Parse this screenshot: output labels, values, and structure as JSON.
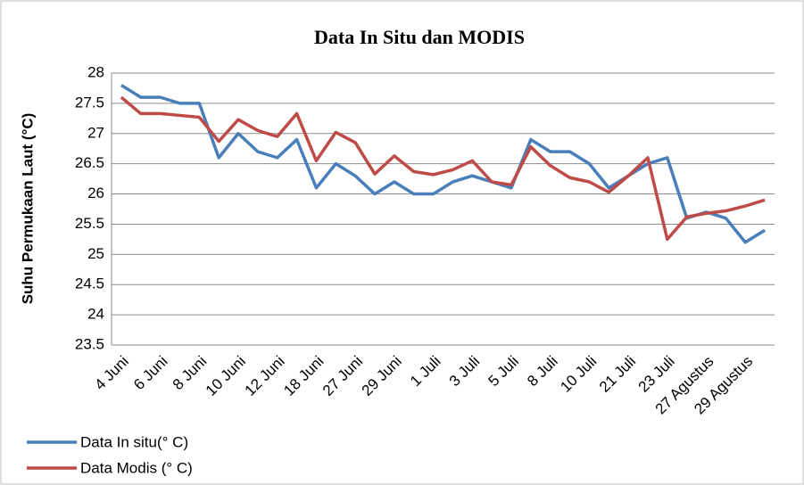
{
  "chart_data": {
    "type": "line",
    "title": "Data In Situ dan MODIS",
    "y_label": "Suhu Permukaan Laut (°C)",
    "categories": [
      "4 Juni",
      null,
      "6 Juni",
      null,
      "8 Juni",
      null,
      "10 Juni",
      null,
      "12 Juni",
      null,
      "18 Juni",
      null,
      "27 Juni",
      null,
      "29 Juni",
      null,
      "1 Juli",
      null,
      "3 Juli",
      null,
      "5 Juli",
      null,
      "8 Juli",
      null,
      "10 Juli",
      null,
      "21 Juli",
      null,
      "23 Juli",
      null,
      "27 Agustus",
      null,
      "29 Agustus",
      null
    ],
    "series": [
      {
        "name": "Data In situ(° C)",
        "color": "#4a7ebb",
        "values": [
          27.8,
          27.6,
          27.6,
          27.5,
          27.5,
          26.6,
          27.0,
          26.7,
          26.6,
          26.9,
          26.1,
          26.5,
          26.3,
          26.0,
          26.2,
          26.0,
          26.0,
          26.2,
          26.3,
          26.2,
          26.1,
          26.9,
          26.7,
          26.7,
          26.5,
          26.1,
          26.3,
          26.5,
          26.6,
          25.6,
          25.7,
          25.6,
          25.2,
          25.4
        ]
      },
      {
        "name": "Data Modis (° C)",
        "color": "#be4b48",
        "values": [
          27.6,
          27.33,
          27.33,
          27.3,
          27.27,
          26.87,
          27.23,
          27.05,
          26.95,
          27.33,
          26.55,
          27.02,
          26.85,
          26.33,
          26.63,
          26.37,
          26.32,
          26.4,
          26.55,
          26.2,
          26.15,
          26.78,
          26.47,
          26.27,
          26.2,
          26.03,
          26.3,
          26.6,
          25.25,
          25.62,
          25.68,
          25.72,
          25.8,
          25.9
        ]
      }
    ],
    "ylim": [
      23.5,
      28
    ],
    "yticks": [
      23.5,
      24,
      24.5,
      25,
      25.5,
      26,
      26.5,
      27,
      27.5,
      28
    ],
    "grid": true
  }
}
